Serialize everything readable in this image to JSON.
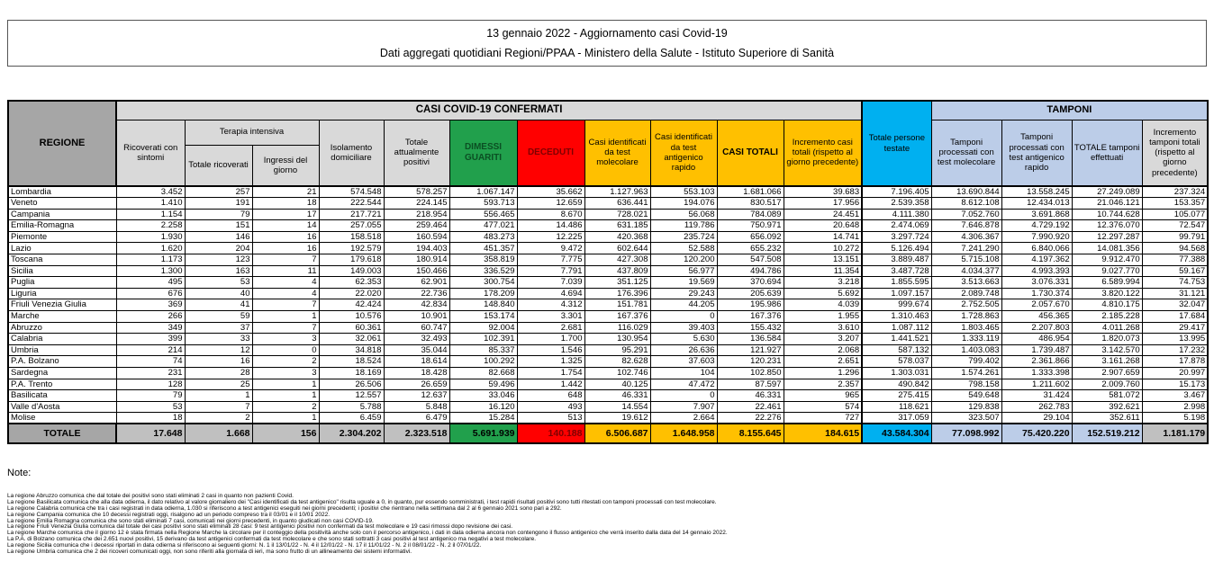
{
  "title": {
    "line1": "13 gennaio 2022 - Aggiornamento casi Covid-19",
    "line2": "Dati aggregati quotidiani Regioni/PPAA - Ministero della Salute - Istituto Superiore di Sanità"
  },
  "colors": {
    "header_dark_gray": "#a6a6a6",
    "header_light_gray": "#d9d9d9",
    "green_dimessi": "#21a04c",
    "red_deceduti": "#ff0000",
    "yellow_casi": "#ffc000",
    "cyan_testate": "#00b0f0",
    "blue_tamponi": "#bccde8",
    "total_row_gray": "#c0c0c0"
  },
  "table": {
    "headers": {
      "regione": "REGIONE",
      "casi_confermati_group": "CASI COVID-19 CONFERMATI",
      "tamponi_group": "TAMPONI",
      "ricoverati": "Ricoverati con sintomi",
      "terapia_intensiva": "Terapia intensiva",
      "totale_ricoverati": "Totale ricoverati",
      "ingressi_giorno": "Ingressi del giorno",
      "isolamento": "Isolamento domiciliare",
      "attualmente_positivi": "Totale attualmente positivi",
      "dimessi_guariti": "DIMESSI GUARITI",
      "deceduti": "DECEDUTI",
      "casi_molecolare": "Casi identificati da test molecolare",
      "casi_antigenico": "Casi identificati da test antigenico rapido",
      "casi_totali": "CASI TOTALI",
      "incremento_casi": "Incremento casi totali (rispetto al giorno precedente)",
      "persone_testate": "Totale persone testate",
      "tamponi_molecolare": "Tamponi processati con test molecolare",
      "tamponi_antigenico": "Tamponi processati con test antigenico rapido",
      "totale_tamponi": "TOTALE tamponi effettuati",
      "incremento_tamponi": "Incremento tamponi totali (rispetto al giorno precedente)"
    },
    "rows": [
      [
        "Lombardia",
        "3.452",
        "257",
        "21",
        "574.548",
        "578.257",
        "1.067.147",
        "35.662",
        "1.127.963",
        "553.103",
        "1.681.066",
        "39.683",
        "7.196.405",
        "13.690.844",
        "13.558.245",
        "27.249.089",
        "237.324"
      ],
      [
        "Veneto",
        "1.410",
        "191",
        "18",
        "222.544",
        "224.145",
        "593.713",
        "12.659",
        "636.441",
        "194.076",
        "830.517",
        "17.956",
        "2.539.358",
        "8.612.108",
        "12.434.013",
        "21.046.121",
        "153.357"
      ],
      [
        "Campania",
        "1.154",
        "79",
        "17",
        "217.721",
        "218.954",
        "556.465",
        "8.670",
        "728.021",
        "56.068",
        "784.089",
        "24.451",
        "4.111.380",
        "7.052.760",
        "3.691.868",
        "10.744.628",
        "105.077"
      ],
      [
        "Emilia-Romagna",
        "2.258",
        "151",
        "14",
        "257.055",
        "259.464",
        "477.021",
        "14.486",
        "631.185",
        "119.786",
        "750.971",
        "20.648",
        "2.474.069",
        "7.646.878",
        "4.729.192",
        "12.376.070",
        "72.547"
      ],
      [
        "Piemonte",
        "1.930",
        "146",
        "16",
        "158.518",
        "160.594",
        "483.273",
        "12.225",
        "420.368",
        "235.724",
        "656.092",
        "14.741",
        "3.297.724",
        "4.306.367",
        "7.990.920",
        "12.297.287",
        "99.791"
      ],
      [
        "Lazio",
        "1.620",
        "204",
        "16",
        "192.579",
        "194.403",
        "451.357",
        "9.472",
        "602.644",
        "52.588",
        "655.232",
        "10.272",
        "5.126.494",
        "7.241.290",
        "6.840.066",
        "14.081.356",
        "94.568"
      ],
      [
        "Toscana",
        "1.173",
        "123",
        "7",
        "179.618",
        "180.914",
        "358.819",
        "7.775",
        "427.308",
        "120.200",
        "547.508",
        "13.151",
        "3.889.487",
        "5.715.108",
        "4.197.362",
        "9.912.470",
        "77.388"
      ],
      [
        "Sicilia",
        "1.300",
        "163",
        "11",
        "149.003",
        "150.466",
        "336.529",
        "7.791",
        "437.809",
        "56.977",
        "494.786",
        "11.354",
        "3.487.728",
        "4.034.377",
        "4.993.393",
        "9.027.770",
        "59.167"
      ],
      [
        "Puglia",
        "495",
        "53",
        "4",
        "62.353",
        "62.901",
        "300.754",
        "7.039",
        "351.125",
        "19.569",
        "370.694",
        "3.218",
        "1.855.595",
        "3.513.663",
        "3.076.331",
        "6.589.994",
        "74.753"
      ],
      [
        "Liguria",
        "676",
        "40",
        "4",
        "22.020",
        "22.736",
        "178.209",
        "4.694",
        "176.396",
        "29.243",
        "205.639",
        "5.692",
        "1.097.157",
        "2.089.748",
        "1.730.374",
        "3.820.122",
        "31.121"
      ],
      [
        "Friuli Venezia Giulia",
        "369",
        "41",
        "7",
        "42.424",
        "42.834",
        "148.840",
        "4.312",
        "151.781",
        "44.205",
        "195.986",
        "4.039",
        "999.674",
        "2.752.505",
        "2.057.670",
        "4.810.175",
        "32.047"
      ],
      [
        "Marche",
        "266",
        "59",
        "1",
        "10.576",
        "10.901",
        "153.174",
        "3.301",
        "167.376",
        "0",
        "167.376",
        "1.955",
        "1.310.463",
        "1.728.863",
        "456.365",
        "2.185.228",
        "17.684"
      ],
      [
        "Abruzzo",
        "349",
        "37",
        "7",
        "60.361",
        "60.747",
        "92.004",
        "2.681",
        "116.029",
        "39.403",
        "155.432",
        "3.610",
        "1.087.112",
        "1.803.465",
        "2.207.803",
        "4.011.268",
        "29.417"
      ],
      [
        "Calabria",
        "399",
        "33",
        "3",
        "32.061",
        "32.493",
        "102.391",
        "1.700",
        "130.954",
        "5.630",
        "136.584",
        "3.207",
        "1.441.521",
        "1.333.119",
        "486.954",
        "1.820.073",
        "13.995"
      ],
      [
        "Umbria",
        "214",
        "12",
        "0",
        "34.818",
        "35.044",
        "85.337",
        "1.546",
        "95.291",
        "26.636",
        "121.927",
        "2.068",
        "587.132",
        "1.403.083",
        "1.739.487",
        "3.142.570",
        "17.232"
      ],
      [
        "P.A. Bolzano",
        "74",
        "16",
        "2",
        "18.524",
        "18.614",
        "100.292",
        "1.325",
        "82.628",
        "37.603",
        "120.231",
        "2.651",
        "578.037",
        "799.402",
        "2.361.866",
        "3.161.268",
        "17.878"
      ],
      [
        "Sardegna",
        "231",
        "28",
        "3",
        "18.169",
        "18.428",
        "82.668",
        "1.754",
        "102.746",
        "104",
        "102.850",
        "1.296",
        "1.303.031",
        "1.574.261",
        "1.333.398",
        "2.907.659",
        "20.997"
      ],
      [
        "P.A. Trento",
        "128",
        "25",
        "1",
        "26.506",
        "26.659",
        "59.496",
        "1.442",
        "40.125",
        "47.472",
        "87.597",
        "2.357",
        "490.842",
        "798.158",
        "1.211.602",
        "2.009.760",
        "15.173"
      ],
      [
        "Basilicata",
        "79",
        "1",
        "1",
        "12.557",
        "12.637",
        "33.046",
        "648",
        "46.331",
        "0",
        "46.331",
        "965",
        "275.415",
        "549.648",
        "31.424",
        "581.072",
        "3.467"
      ],
      [
        "Valle d'Aosta",
        "53",
        "7",
        "2",
        "5.788",
        "5.848",
        "16.120",
        "493",
        "14.554",
        "7.907",
        "22.461",
        "574",
        "118.621",
        "129.838",
        "262.783",
        "392.621",
        "2.998"
      ],
      [
        "Molise",
        "18",
        "2",
        "1",
        "6.459",
        "6.479",
        "15.284",
        "513",
        "19.612",
        "2.664",
        "22.276",
        "727",
        "317.059",
        "323.507",
        "29.104",
        "352.611",
        "5.198"
      ]
    ],
    "totals": [
      "TOTALE",
      "17.648",
      "1.668",
      "156",
      "2.304.202",
      "2.323.518",
      "5.691.939",
      "140.188",
      "6.506.687",
      "1.648.958",
      "8.155.645",
      "184.615",
      "43.584.304",
      "77.098.992",
      "75.420.220",
      "152.519.212",
      "1.181.179"
    ]
  },
  "notes": {
    "heading": "Note:",
    "items": [
      "La regione Abruzzo comunica che dal totale dei positivi sono stati eliminati 2 casi in quanto non pazienti Covid.",
      "La regione Basilicata comunica che alla data odierna, il dato relativo al valore giornaliero dei \"Casi identificati da test antigenico\" risulta uguale a 0, in quanto, pur essendo somministrati, i test rapidi risultati positivi sono tutti ritestati con tamponi processati con test molecolare.",
      "La regione Calabria comunica che tra i casi registrati in data odierna, 1.030 si riferiscono a test antigenici eseguiti nei giorni precedenti; i positivi che rientrano nella settimana dal 2 al 6 gennaio 2021 sono pari a 292.",
      "La regione Campania comunica che 10 decessi registrati oggi, risalgono ad un periodo compreso tra il 03/01 e il 10/01 2022.",
      "La regione Emilia Romagna comunica che sono stati eliminati 7 casi, comunicati nei giorni precedenti, in quanto giudicati non casi COVID-19.",
      "La regione Friuli Venezia Giulia comunica dal totale dei casi positivi sono stati eliminati 28 casi: 9 test antigenici positivi non confermati da test molecolare e 19 casi rimossi dopo revisione dei casi.",
      "La regione Marche comunica che il giorno 12 è stata firmata nella Regione Marche la circolare per il conteggio della positività anche solo con il percorso antigenico, i dati in data odierna ancora non contengono il flusso antigenico che verrà inserito dalla data del 14 gennaio 2022.",
      "La P.A. di Bolzano comunica che dei 2.651 nuovi positivi, 15 derivano da test antigenici confermati da test molecolare e che sono stati sottratti 3 casi positivi al test antigenico ma negativi a test molecolare.",
      "La regione Sicilia comunica che i decessi riportati in data odierna si riferiscono ai seguenti giorni: N. 1 il 13/01/22 - N. 4 il 12/01/22 - N. 17 il 11/01/22 - N. 2 il 08/01/22 - N. 2 il 07/01/22.",
      "La regione Umbria comunica che 2 dei ricoveri comunicati oggi, non sono riferiti alla giornata di ieri, ma sono frutto di un allineamento dei sistemi informativi."
    ]
  }
}
